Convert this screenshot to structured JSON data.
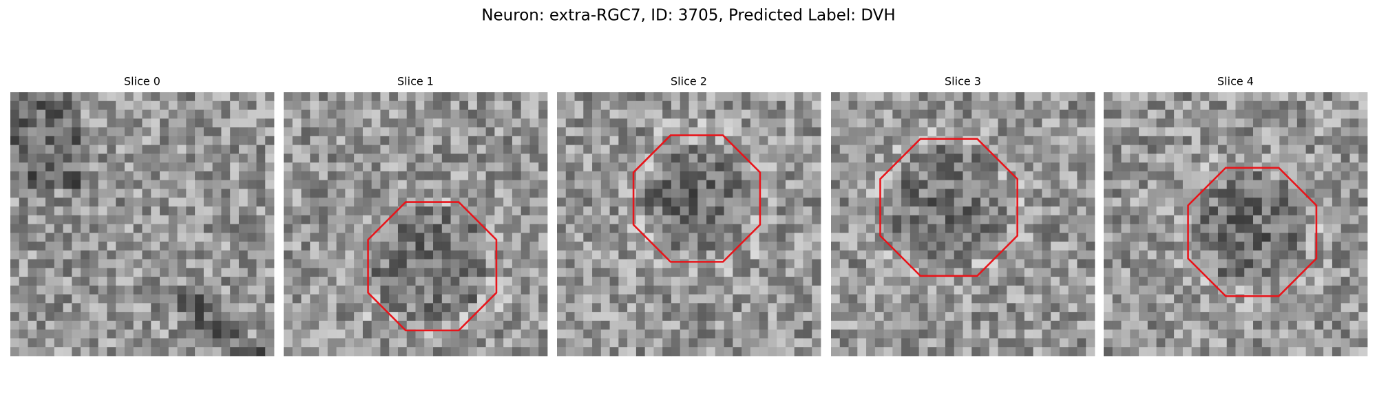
{
  "figure": {
    "title": "Neuron: extra-RGC7, ID: 3705, Predicted Label: DVH",
    "panels": [
      {
        "title": "Slice 0"
      },
      {
        "title": "Slice 1"
      },
      {
        "title": "Slice 2"
      },
      {
        "title": "Slice 3"
      },
      {
        "title": "Slice 4"
      }
    ]
  }
}
